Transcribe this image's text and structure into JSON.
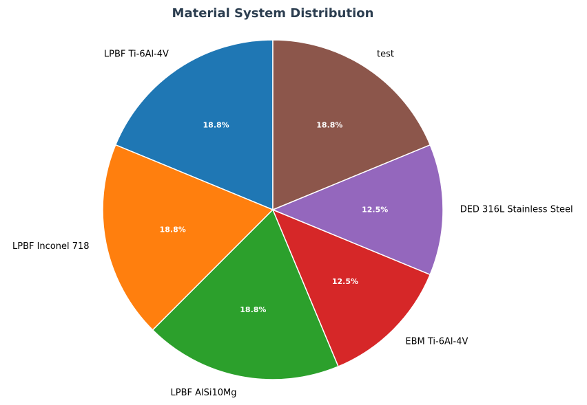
{
  "colors": {
    "title": "#2c3e50",
    "slice_border": "#ffffff",
    "percent_text": "#ffffff"
  },
  "chart_data": {
    "type": "pie",
    "title": "Material System Distribution",
    "start_angle_deg": 90,
    "direction": "counterclockwise",
    "slices": [
      {
        "label": "LPBF Ti-6Al-4V",
        "value": 18.8,
        "pct_label": "18.8%",
        "color": "#1f77b4"
      },
      {
        "label": "LPBF Inconel 718",
        "value": 18.8,
        "pct_label": "18.8%",
        "color": "#ff7f0e"
      },
      {
        "label": "LPBF AlSi10Mg",
        "value": 18.8,
        "pct_label": "18.8%",
        "color": "#2ca02c"
      },
      {
        "label": "EBM Ti-6Al-4V",
        "value": 12.5,
        "pct_label": "12.5%",
        "color": "#d62728"
      },
      {
        "label": "DED 316L Stainless Steel",
        "value": 12.5,
        "pct_label": "12.5%",
        "color": "#9467bd"
      },
      {
        "label": "test",
        "value": 18.8,
        "pct_label": "18.8%",
        "color": "#8c564b"
      }
    ]
  }
}
